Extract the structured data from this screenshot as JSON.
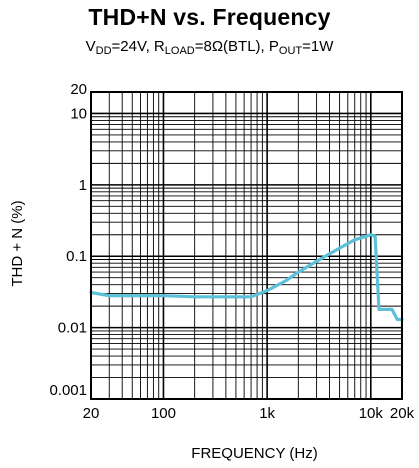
{
  "chart_data": {
    "type": "line",
    "title": "THD+N vs. Frequency",
    "subtitle": {
      "vdd": "DD",
      "vdd_value": "=24V, R",
      "rload": "LOAD",
      "rload_value": "=8Ω(BTL), P",
      "pout": "OUT",
      "pout_value": "=1W"
    },
    "xlabel": "FREQUENCY (Hz)",
    "ylabel": "THD + N (%)",
    "x_scale": "log",
    "y_scale": "log",
    "xlim": [
      20,
      20000
    ],
    "ylim": [
      0.001,
      20
    ],
    "x_ticks": [
      {
        "value": 20,
        "label": "20"
      },
      {
        "value": 100,
        "label": "100"
      },
      {
        "value": 1000,
        "label": "1k"
      },
      {
        "value": 10000,
        "label": "10k"
      },
      {
        "value": 20000,
        "label": "20k"
      }
    ],
    "y_ticks": [
      {
        "value": 0.001,
        "label": "0.001"
      },
      {
        "value": 0.01,
        "label": "0.01"
      },
      {
        "value": 0.1,
        "label": "0.1"
      },
      {
        "value": 1,
        "label": "1"
      },
      {
        "value": 10,
        "label": "10"
      },
      {
        "value": 20,
        "label": "20"
      }
    ],
    "grid": true,
    "line_color": "#5bc0d8",
    "series": [
      {
        "x": [
          20,
          30,
          50,
          100,
          200,
          500,
          700,
          1000,
          1500,
          2000,
          3000,
          5000,
          7000,
          10000,
          11000,
          12000,
          13500,
          16000,
          18000,
          20000
        ],
        "y": [
          0.031,
          0.028,
          0.028,
          0.028,
          0.027,
          0.027,
          0.027,
          0.033,
          0.045,
          0.06,
          0.085,
          0.13,
          0.17,
          0.2,
          0.19,
          0.018,
          0.018,
          0.018,
          0.013,
          0.013
        ]
      }
    ]
  }
}
